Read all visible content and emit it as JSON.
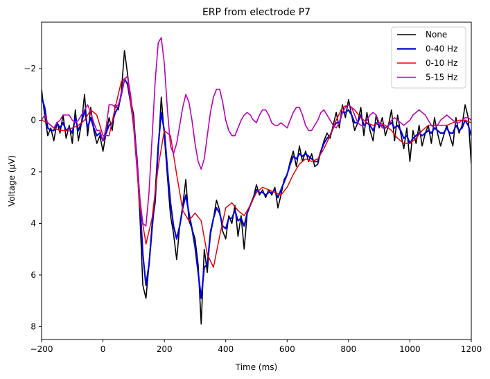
{
  "chart_data": {
    "type": "line",
    "title": "ERP from electrode P7",
    "xlabel": "Time (ms)",
    "ylabel": "Voltage (μV)",
    "xlim": [
      -200,
      1200
    ],
    "ylim": [
      8.5,
      -3.8
    ],
    "y_inverted": true,
    "x_ticks": [
      -200,
      0,
      200,
      400,
      600,
      800,
      1000,
      1200
    ],
    "y_ticks": [
      -2,
      0,
      2,
      4,
      6,
      8
    ],
    "grid": false,
    "legend_position": "top-right",
    "series": [
      {
        "name": "None",
        "color": "#000000",
        "x": [
          -200,
          -190,
          -180,
          -170,
          -160,
          -150,
          -140,
          -130,
          -120,
          -110,
          -100,
          -90,
          -80,
          -70,
          -60,
          -50,
          -40,
          -30,
          -20,
          -10,
          0,
          10,
          20,
          30,
          40,
          50,
          60,
          70,
          80,
          90,
          100,
          110,
          120,
          130,
          140,
          150,
          160,
          170,
          180,
          190,
          200,
          210,
          220,
          230,
          240,
          250,
          260,
          270,
          280,
          290,
          300,
          310,
          320,
          330,
          340,
          350,
          360,
          370,
          380,
          390,
          400,
          410,
          420,
          430,
          440,
          450,
          460,
          470,
          480,
          490,
          500,
          510,
          520,
          530,
          540,
          550,
          560,
          570,
          580,
          590,
          600,
          610,
          620,
          630,
          640,
          650,
          660,
          670,
          680,
          690,
          700,
          710,
          720,
          730,
          740,
          750,
          760,
          770,
          780,
          790,
          800,
          810,
          820,
          830,
          840,
          850,
          860,
          870,
          880,
          890,
          900,
          910,
          920,
          930,
          940,
          950,
          960,
          970,
          980,
          990,
          1000,
          1010,
          1020,
          1030,
          1040,
          1050,
          1060,
          1070,
          1080,
          1090,
          1100,
          1110,
          1120,
          1130,
          1140,
          1150,
          1160,
          1170,
          1180,
          1190,
          1200
        ],
        "y": [
          -1.2,
          -0.2,
          0.6,
          0.3,
          0.8,
          0.1,
          0.5,
          -0.2,
          0.7,
          0.2,
          0.9,
          -0.4,
          0.8,
          0.1,
          -1.0,
          0.6,
          -0.5,
          0.4,
          0.9,
          0.6,
          1.2,
          0.5,
          -0.1,
          0.4,
          -0.6,
          -0.4,
          -1.1,
          -2.7,
          -1.8,
          -0.8,
          -0.2,
          1.5,
          3.6,
          6.4,
          6.9,
          5.6,
          4.0,
          3.2,
          1.2,
          -0.9,
          0.6,
          2.2,
          3.7,
          4.4,
          5.4,
          4.1,
          3.3,
          2.3,
          3.9,
          4.2,
          4.6,
          5.6,
          7.9,
          5.0,
          5.9,
          4.3,
          3.8,
          3.1,
          3.5,
          4.3,
          4.6,
          3.7,
          4.0,
          3.3,
          4.5,
          3.7,
          5.0,
          3.6,
          3.3,
          3.0,
          2.5,
          2.9,
          2.7,
          3.0,
          2.7,
          2.9,
          2.6,
          3.4,
          2.9,
          2.3,
          2.1,
          1.6,
          1.2,
          1.8,
          1.0,
          1.6,
          1.2,
          1.6,
          1.3,
          1.8,
          1.7,
          1.2,
          0.8,
          0.5,
          0.7,
          0.2,
          -0.3,
          0.3,
          -0.6,
          -0.1,
          -0.8,
          -0.2,
          0.4,
          0.1,
          -0.5,
          0.6,
          -0.3,
          0.4,
          0.8,
          -0.2,
          0.3,
          -0.1,
          0.6,
          0.2,
          -0.4,
          0.8,
          -0.2,
          0.5,
          1.1,
          0.3,
          1.6,
          0.4,
          0.9,
          0.2,
          1.0,
          0.5,
          0.2,
          0.9,
          -0.1,
          0.5,
          1.0,
          0.6,
          0.2,
          0.6,
          1.0,
          -0.1,
          0.5,
          0.2,
          -0.6,
          -0.1,
          1.7
        ]
      },
      {
        "name": "0-40 Hz",
        "color": "#0000dd",
        "x": [
          -200,
          -190,
          -180,
          -170,
          -160,
          -150,
          -140,
          -130,
          -120,
          -110,
          -100,
          -90,
          -80,
          -70,
          -60,
          -50,
          -40,
          -30,
          -20,
          -10,
          0,
          10,
          20,
          30,
          40,
          50,
          60,
          70,
          80,
          90,
          100,
          110,
          120,
          130,
          140,
          150,
          160,
          170,
          180,
          190,
          200,
          210,
          220,
          230,
          240,
          250,
          260,
          270,
          280,
          290,
          300,
          310,
          320,
          330,
          340,
          350,
          360,
          370,
          380,
          390,
          400,
          410,
          420,
          430,
          440,
          450,
          460,
          470,
          480,
          490,
          500,
          510,
          520,
          530,
          540,
          550,
          560,
          570,
          580,
          590,
          600,
          610,
          620,
          630,
          640,
          650,
          660,
          670,
          680,
          690,
          700,
          710,
          720,
          730,
          740,
          750,
          760,
          770,
          780,
          790,
          800,
          810,
          820,
          830,
          840,
          850,
          860,
          870,
          880,
          890,
          900,
          910,
          920,
          930,
          940,
          950,
          960,
          970,
          980,
          990,
          1000,
          1010,
          1020,
          1030,
          1040,
          1050,
          1060,
          1070,
          1080,
          1090,
          1100,
          1110,
          1120,
          1130,
          1140,
          1150,
          1160,
          1170,
          1180,
          1190,
          1200
        ],
        "y": [
          -0.9,
          -0.5,
          0.3,
          0.4,
          0.4,
          0.1,
          0.3,
          0.1,
          0.4,
          0.3,
          0.5,
          -0.1,
          0.4,
          0.1,
          -0.4,
          0.3,
          -0.1,
          0.3,
          0.6,
          0.5,
          0.8,
          0.5,
          0.2,
          0.1,
          -0.3,
          -0.5,
          -1.0,
          -1.6,
          -1.4,
          -0.7,
          0.1,
          1.4,
          3.1,
          5.2,
          6.4,
          5.6,
          4.2,
          2.9,
          1.0,
          -0.3,
          0.4,
          1.9,
          3.2,
          4.1,
          4.6,
          4.1,
          3.4,
          2.9,
          3.6,
          4.2,
          4.9,
          5.9,
          6.9,
          5.7,
          5.6,
          4.4,
          3.8,
          3.4,
          3.6,
          4.1,
          4.2,
          3.8,
          3.8,
          3.5,
          3.9,
          3.8,
          4.1,
          3.6,
          3.3,
          3.0,
          2.7,
          2.8,
          2.8,
          2.9,
          2.8,
          2.8,
          2.7,
          3.0,
          2.7,
          2.4,
          2.1,
          1.7,
          1.4,
          1.5,
          1.3,
          1.4,
          1.3,
          1.4,
          1.5,
          1.6,
          1.6,
          1.2,
          0.9,
          0.7,
          0.6,
          0.3,
          0.1,
          0.1,
          -0.3,
          -0.3,
          -0.4,
          -0.2,
          0.1,
          0.1,
          -0.2,
          0.2,
          0.1,
          0.2,
          0.4,
          0.1,
          0.2,
          0.2,
          0.3,
          0.2,
          0.1,
          0.3,
          0.2,
          0.4,
          0.7,
          0.6,
          0.9,
          0.7,
          0.6,
          0.5,
          0.6,
          0.5,
          0.4,
          0.5,
          0.3,
          0.4,
          0.5,
          0.5,
          0.3,
          0.5,
          0.5,
          0.2,
          0.4,
          0.3,
          0.0,
          0.2,
          0.6
        ]
      },
      {
        "name": "0-10 Hz",
        "color": "#ee0000",
        "x": [
          -200,
          -180,
          -160,
          -140,
          -120,
          -100,
          -80,
          -60,
          -40,
          -20,
          0,
          20,
          40,
          60,
          80,
          100,
          120,
          140,
          160,
          180,
          200,
          220,
          240,
          260,
          280,
          300,
          320,
          340,
          360,
          380,
          400,
          420,
          440,
          460,
          480,
          500,
          520,
          540,
          560,
          580,
          600,
          620,
          640,
          660,
          680,
          700,
          720,
          740,
          760,
          780,
          800,
          820,
          840,
          860,
          880,
          900,
          920,
          940,
          960,
          980,
          1000,
          1020,
          1040,
          1060,
          1080,
          1100,
          1120,
          1140,
          1160,
          1180,
          1200
        ],
        "y": [
          0.0,
          0.1,
          0.3,
          0.4,
          0.4,
          0.3,
          0.2,
          0.0,
          -0.4,
          -0.2,
          0.6,
          0.6,
          -0.5,
          -1.5,
          -1.7,
          0.3,
          3.3,
          4.8,
          3.8,
          1.8,
          0.4,
          0.6,
          2.1,
          3.5,
          3.9,
          3.6,
          3.9,
          5.2,
          5.7,
          4.5,
          3.4,
          3.2,
          3.5,
          3.7,
          3.3,
          2.8,
          2.6,
          2.7,
          2.8,
          2.9,
          2.6,
          2.1,
          1.7,
          1.5,
          1.6,
          1.5,
          1.1,
          0.6,
          0.0,
          -0.5,
          -0.6,
          -0.4,
          -0.1,
          0.1,
          0.2,
          0.1,
          0.2,
          0.4,
          0.7,
          0.9,
          0.9,
          0.7,
          0.4,
          0.2,
          0.2,
          0.2,
          0.2,
          0.1,
          0.0,
          0.0,
          0.1
        ]
      },
      {
        "name": "5-15 Hz",
        "color": "#bb00bb",
        "x": [
          -200,
          -190,
          -180,
          -170,
          -160,
          -150,
          -140,
          -130,
          -120,
          -110,
          -100,
          -90,
          -80,
          -70,
          -60,
          -50,
          -40,
          -30,
          -20,
          -10,
          0,
          10,
          20,
          30,
          40,
          50,
          60,
          70,
          80,
          90,
          100,
          110,
          120,
          130,
          140,
          150,
          160,
          170,
          180,
          190,
          200,
          210,
          220,
          230,
          240,
          250,
          260,
          270,
          280,
          290,
          300,
          310,
          320,
          330,
          340,
          350,
          360,
          370,
          380,
          390,
          400,
          410,
          420,
          430,
          440,
          450,
          460,
          470,
          480,
          490,
          500,
          510,
          520,
          530,
          540,
          550,
          560,
          570,
          580,
          590,
          600,
          610,
          620,
          630,
          640,
          650,
          660,
          670,
          680,
          690,
          700,
          710,
          720,
          730,
          740,
          750,
          760,
          770,
          780,
          790,
          800,
          810,
          820,
          830,
          840,
          850,
          860,
          870,
          880,
          890,
          900,
          910,
          920,
          930,
          940,
          950,
          960,
          970,
          980,
          990,
          1000,
          1010,
          1020,
          1030,
          1040,
          1050,
          1060,
          1070,
          1080,
          1090,
          1100,
          1110,
          1120,
          1130,
          1140,
          1150,
          1160,
          1170,
          1180,
          1190,
          1200
        ],
        "y": [
          0.0,
          -0.2,
          0.1,
          0.2,
          0.3,
          0.1,
          0.0,
          -0.2,
          -0.2,
          -0.2,
          0.0,
          0.1,
          0.0,
          -0.2,
          -0.4,
          -0.6,
          -0.3,
          0.1,
          0.4,
          0.4,
          0.8,
          0.3,
          -0.6,
          -0.6,
          -0.5,
          -0.6,
          -1.0,
          -1.6,
          -1.7,
          -1.0,
          0.1,
          1.5,
          3.0,
          4.0,
          4.1,
          2.8,
          0.7,
          -1.5,
          -3.0,
          -3.2,
          -2.2,
          -0.4,
          1.0,
          1.3,
          0.9,
          0.2,
          -0.5,
          -1.0,
          -0.7,
          0.0,
          0.9,
          1.6,
          1.9,
          1.5,
          0.6,
          -0.3,
          -0.9,
          -1.2,
          -1.2,
          -0.7,
          0.0,
          0.4,
          0.6,
          0.6,
          0.3,
          0.0,
          -0.2,
          -0.3,
          -0.2,
          0.0,
          0.1,
          -0.2,
          -0.4,
          -0.4,
          -0.2,
          0.1,
          0.2,
          0.2,
          0.1,
          0.2,
          0.3,
          0.0,
          -0.3,
          -0.5,
          -0.5,
          -0.2,
          0.2,
          0.4,
          0.4,
          0.2,
          0.0,
          -0.3,
          -0.4,
          -0.2,
          0.0,
          0.2,
          0.3,
          0.1,
          -0.3,
          -0.5,
          -0.6,
          -0.5,
          -0.2,
          0.1,
          0.2,
          0.2,
          0.0,
          -0.2,
          -0.3,
          -0.2,
          0.1,
          0.3,
          0.3,
          0.2,
          0.0,
          -0.1,
          0.0,
          0.1,
          0.2,
          0.1,
          0.0,
          -0.2,
          -0.3,
          -0.4,
          -0.3,
          -0.2,
          0.0,
          0.2,
          0.3,
          0.2,
          0.0,
          -0.1,
          -0.2,
          -0.1,
          0.0,
          0.1,
          0.1,
          0.0,
          -0.1,
          -0.1,
          0.0
        ]
      }
    ]
  }
}
